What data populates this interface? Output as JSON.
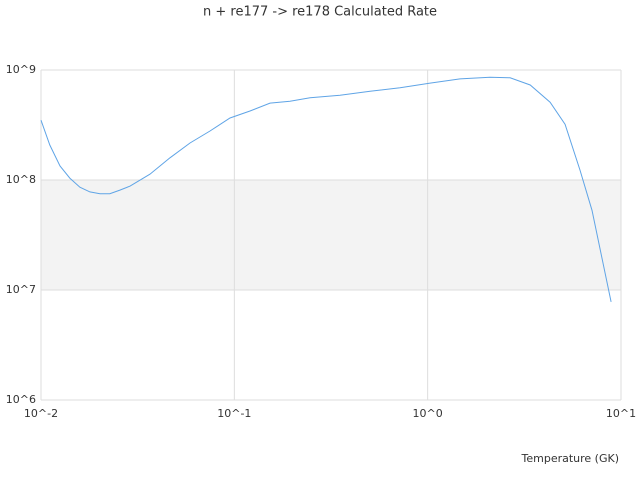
{
  "chart_data": {
    "type": "line",
    "title": "n + re177 -> re178 Calculated Rate",
    "x_label": "Temperature (GK)",
    "x": [
      0.01,
      0.0111,
      0.01254,
      0.0141,
      0.0159,
      0.0179,
      0.0202,
      0.0227,
      0.0256,
      0.0289,
      0.0366,
      0.0465,
      0.059,
      0.0748,
      0.095,
      0.1205,
      0.153,
      0.194,
      0.2465,
      0.352,
      0.504,
      0.72,
      1.03,
      1.47,
      2.1,
      2.67,
      3.39,
      4.3,
      5.14,
      6.14,
      7.08,
      8.89
    ],
    "series": [
      {
        "name": "rate",
        "color": "#5fa4e6",
        "values": [
          350000000,
          208000000,
          134000000,
          104000000,
          86000000,
          78000000,
          75000000,
          75000000,
          81000000,
          88000000,
          113000000,
          159000000,
          217000000,
          279000000,
          366000000,
          424000000,
          500000000,
          520000000,
          560000000,
          590000000,
          640000000,
          690000000,
          760000000,
          830000000,
          860000000,
          850000000,
          730000000,
          510000000,
          320000000,
          123000000,
          53000000,
          7800000
        ]
      }
    ],
    "xscale": "log",
    "yscale": "log",
    "xlim": [
      0.01,
      10
    ],
    "ylim": [
      1000000,
      1000000000
    ],
    "xticks": [
      {
        "value": 0.01,
        "label": "10^-2"
      },
      {
        "value": 0.1,
        "label": "10^-1"
      },
      {
        "value": 1,
        "label": "10^0"
      },
      {
        "value": 10,
        "label": "10^1"
      }
    ],
    "yticks": [
      {
        "value": 1000000,
        "label": "10^6"
      },
      {
        "value": 10000000,
        "label": "10^7"
      },
      {
        "value": 100000000,
        "label": "10^8"
      },
      {
        "value": 1000000000,
        "label": "10^9"
      }
    ],
    "grid": true
  }
}
